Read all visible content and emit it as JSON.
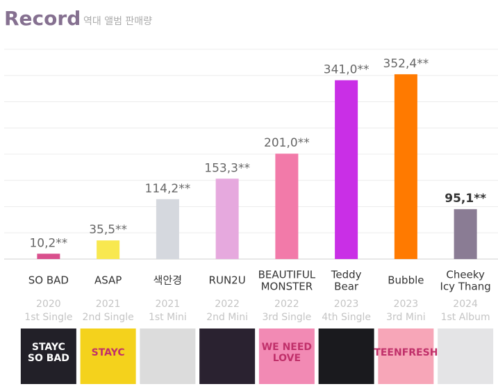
{
  "chart_data": {
    "type": "bar",
    "title": "Record",
    "subtitle": "역대 앨범 판매량",
    "categories": [
      "SO BAD",
      "ASAP",
      "색안경",
      "RUN2U",
      "BEAUTIFUL\nMONSTER",
      "Teddy\nBear",
      "Bubble",
      "Cheeky\nIcy Thang"
    ],
    "years": [
      "2020",
      "2021",
      "2021",
      "2022",
      "2022",
      "2023",
      "2023",
      "2024"
    ],
    "release_types": [
      "1st Single",
      "2nd Single",
      "1st Mini",
      "2nd Mini",
      "3rd Single",
      "4th Single",
      "3rd Mini",
      "1st Album"
    ],
    "values": [
      10.2,
      35.5,
      114.2,
      153.3,
      201.0,
      341.0,
      352.4,
      95.1
    ],
    "value_labels": [
      "10,2**",
      "35,5**",
      "114,2**",
      "153,3**",
      "201,0**",
      "341,0**",
      "352,4**",
      "95,1**"
    ],
    "colors": [
      "#d9508d",
      "#f8e850",
      "#d5d8de",
      "#e6a9de",
      "#f27aa9",
      "#c92fe6",
      "#ff7a00",
      "#8a7c94"
    ],
    "bold_label_index": 7,
    "cover_colors": [
      "#222028",
      "#f4d21c",
      "#dcdcdc",
      "#2a2230",
      "#f28ab4",
      "#1a1a1e",
      "#f7a6b8",
      "#e4e4e6"
    ],
    "cover_texts": [
      "STAYC\nSO BAD",
      "STAYC",
      null,
      null,
      "WE NEED\nLOVE",
      null,
      "TEENFRESH",
      null
    ],
    "ylim": [
      0,
      400
    ],
    "yticks": [
      0,
      50,
      100,
      150,
      200,
      250,
      300,
      350,
      400
    ],
    "grid": true
  }
}
